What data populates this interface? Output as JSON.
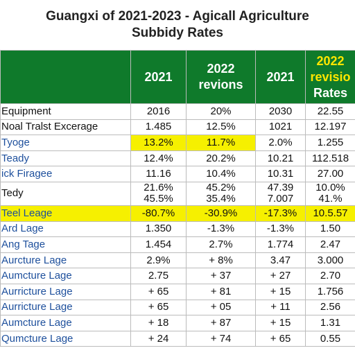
{
  "header": {
    "title": [
      "Guangxi of 2021-2023 - Agicall Agriculture",
      "Subbidy Rates"
    ]
  },
  "table": {
    "columns": [
      "",
      [
        "2021"
      ],
      [
        "2022",
        "revions"
      ],
      [
        "2021"
      ],
      [
        "2022",
        "revisio",
        "Rates"
      ]
    ],
    "rows": [
      {
        "label": "Equipment",
        "label_color": "black",
        "cells": [
          "2016",
          "20%",
          "2030",
          "22.55"
        ]
      },
      {
        "label": "Noal Tralst Excerage",
        "label_color": "black",
        "cells": [
          "1.485",
          "12.5%",
          "1021",
          "12.197"
        ]
      },
      {
        "label": "Tyoge",
        "label_color": "blue",
        "cells": [
          "13.2%",
          "11.7%",
          "2.0%",
          "1.255"
        ],
        "highlight": [
          0,
          1
        ]
      },
      {
        "label": "Teady",
        "label_color": "blue",
        "cells": [
          "12.4%",
          "20.2%",
          "10.21",
          "112.518"
        ]
      },
      {
        "label": "ick Firagee",
        "label_color": "blue",
        "cells": [
          "11.16",
          "10.4%",
          "10.31",
          "27.00"
        ]
      },
      {
        "label": "Tedy",
        "label_color": "black",
        "cells": [
          [
            "21.6%",
            "45.5%"
          ],
          [
            "45.2%",
            "35.4%"
          ],
          [
            "47.39",
            "7.007"
          ],
          [
            "10.0%",
            "41.%"
          ]
        ]
      },
      {
        "label": "Teel Leage",
        "label_color": "blue",
        "cells": [
          "-80.7%",
          "-30.9%",
          "-17.3%",
          "10.5.57"
        ],
        "highlight": [
          -1,
          0,
          1,
          2,
          3
        ]
      },
      {
        "label": "Ard Lage",
        "label_color": "blue",
        "cells": [
          "1.350",
          "-1.3%",
          "-1.3%",
          "1.50"
        ]
      },
      {
        "label": "Ang Tage",
        "label_color": "blue",
        "cells": [
          "1.454",
          "2.7%",
          "1.774",
          "2.47"
        ]
      },
      {
        "label": "Aurcture Lage",
        "label_color": "blue",
        "cells": [
          "2.9%",
          "+ 8%",
          "3.47",
          "3.000"
        ]
      },
      {
        "label": "Aumcture Lage",
        "label_color": "blue",
        "cells": [
          "2.75",
          "+ 37",
          "+ 27",
          "2.70"
        ]
      },
      {
        "label": "Aurricture Lage",
        "label_color": "blue",
        "cells": [
          "+ 65",
          "+ 81",
          "+ 15",
          "1.756"
        ]
      },
      {
        "label": "Aurricture Lage",
        "label_color": "blue",
        "cells": [
          "+ 65",
          "+ 05",
          "+ 11",
          "2.56"
        ]
      },
      {
        "label": "Aumcture Lage",
        "label_color": "blue",
        "cells": [
          "+ 18",
          "+ 87",
          "+ 15",
          "1.31"
        ]
      },
      {
        "label": "Qumcture Lage",
        "label_color": "blue",
        "cells": [
          "+ 24",
          "+ 74",
          "+ 65",
          "0.55"
        ]
      }
    ]
  }
}
